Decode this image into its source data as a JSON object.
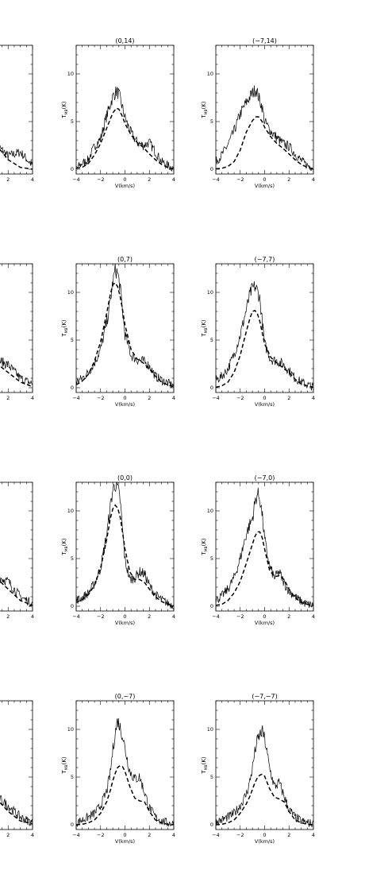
{
  "figure": {
    "xlabel": "V(km/s)",
    "ylabel_prefix": "T",
    "ylabel_sub": "MB",
    "ylabel_suffix": "(K)"
  },
  "chart_data": [
    {
      "type": "line",
      "title": "",
      "xlabel": "",
      "ylabel": "",
      "xlim": [
        -4,
        4
      ],
      "ylim": [
        -0.5,
        13
      ],
      "yticks": [],
      "xticks": [
        2,
        4
      ],
      "series": [
        {
          "style": "solid",
          "x": [
            1.0,
            2.0,
            3.0,
            4.0
          ],
          "y": [
            2.6,
            1.4,
            1.8,
            0.4
          ]
        },
        {
          "style": "dashed",
          "x": [
            1.0,
            2.0,
            3.0,
            4.0
          ],
          "y": [
            2.6,
            1.0,
            0.2,
            0.0
          ]
        }
      ]
    },
    {
      "type": "line",
      "title": "(0,14)",
      "xlabel": "V(km/s)",
      "ylabel": "TMB(K)",
      "xlim": [
        -4,
        4
      ],
      "ylim": [
        -0.5,
        13
      ],
      "yticks": [
        0,
        5,
        10
      ],
      "xticks": [
        -4,
        -2,
        0,
        2,
        4
      ],
      "series": [
        {
          "style": "solid",
          "x": [
            -4,
            -3.5,
            -3,
            -2.5,
            -2,
            -1.5,
            -1,
            -0.7,
            -0.5,
            -0.2,
            0,
            0.5,
            1,
            1.5,
            2,
            2.5,
            3,
            3.5,
            4
          ],
          "y": [
            0.1,
            0.6,
            1.0,
            2.4,
            3.2,
            5.6,
            7.6,
            8.2,
            7.9,
            6.4,
            5.4,
            3.8,
            2.8,
            2.5,
            2.8,
            1.8,
            0.8,
            0.4,
            0.1
          ]
        },
        {
          "style": "dashed",
          "x": [
            -4,
            -3.5,
            -3,
            -2.5,
            -2,
            -1.5,
            -1,
            -0.7,
            -0.5,
            -0.2,
            0,
            0.5,
            1,
            1.5,
            2,
            2.5,
            3,
            3.5,
            4
          ],
          "y": [
            0.1,
            0.2,
            0.6,
            1.5,
            2.7,
            4.3,
            5.9,
            6.4,
            6.3,
            5.5,
            4.8,
            3.6,
            2.8,
            2.3,
            1.6,
            1.0,
            0.5,
            0.2,
            0.05
          ]
        }
      ]
    },
    {
      "type": "line",
      "title": "(−7,14)",
      "xlabel": "V(km/s)",
      "ylabel": "TMB(K)",
      "xlim": [
        -4,
        4
      ],
      "ylim": [
        -0.5,
        13
      ],
      "yticks": [
        0,
        5,
        10
      ],
      "xticks": [
        -4,
        -2,
        0,
        2,
        4
      ],
      "series": [
        {
          "style": "solid",
          "x": [
            -4,
            -3.5,
            -3,
            -2.5,
            -2,
            -1.5,
            -1,
            -0.7,
            -0.5,
            -0.2,
            0,
            0.5,
            1,
            1.5,
            2,
            2.5,
            3,
            3.5,
            4
          ],
          "y": [
            0.8,
            1.5,
            2.6,
            4.0,
            5.8,
            7.0,
            8.0,
            8.4,
            7.6,
            6.5,
            5.0,
            4.0,
            3.3,
            2.7,
            2.4,
            1.6,
            0.9,
            0.4,
            0.2
          ]
        },
        {
          "style": "dashed",
          "x": [
            -4,
            -3.5,
            -3,
            -2.5,
            -2,
            -1.5,
            -1,
            -0.7,
            -0.5,
            -0.2,
            0,
            0.5,
            1,
            1.5,
            2,
            2.5,
            3,
            3.5,
            4
          ],
          "y": [
            0.05,
            0.1,
            0.3,
            0.8,
            2.0,
            3.9,
            5.1,
            5.5,
            5.5,
            5.0,
            4.4,
            3.4,
            2.7,
            2.2,
            1.6,
            1.0,
            0.5,
            0.2,
            0.05
          ]
        }
      ]
    },
    {
      "type": "line",
      "title": "",
      "xlabel": "",
      "ylabel": "",
      "xlim": [
        -4,
        4
      ],
      "ylim": [
        -0.5,
        13
      ],
      "yticks": [],
      "xticks": [
        2,
        4
      ],
      "series": [
        {
          "style": "solid",
          "x": [
            1.0,
            2.0,
            3.0,
            4.0
          ],
          "y": [
            3.0,
            2.4,
            1.0,
            0.4
          ]
        },
        {
          "style": "dashed",
          "x": [
            1.0,
            2.0,
            3.0,
            4.0
          ],
          "y": [
            2.6,
            1.6,
            0.6,
            0.1
          ]
        }
      ]
    },
    {
      "type": "line",
      "title": "(0,7)",
      "xlabel": "V(km/s)",
      "ylabel": "TMB(K)",
      "xlim": [
        -4,
        4
      ],
      "ylim": [
        -0.5,
        13
      ],
      "yticks": [
        0,
        5,
        10
      ],
      "xticks": [
        -4,
        -2,
        0,
        2,
        4
      ],
      "series": [
        {
          "style": "solid",
          "x": [
            -4,
            -3.5,
            -3,
            -2.5,
            -2,
            -1.5,
            -1.2,
            -1,
            -0.8,
            -0.6,
            -0.4,
            -0.2,
            0,
            0.5,
            1,
            1.5,
            2,
            2.5,
            3,
            3.5,
            4
          ],
          "y": [
            0.6,
            1.0,
            1.6,
            2.6,
            4.0,
            6.8,
            9.0,
            11.0,
            12.4,
            12.0,
            10.6,
            8.0,
            5.6,
            3.4,
            2.9,
            2.8,
            2.3,
            1.2,
            0.8,
            0.5,
            0.2
          ]
        },
        {
          "style": "dashed",
          "x": [
            -4,
            -3.5,
            -3,
            -2.5,
            -2,
            -1.5,
            -1.2,
            -1,
            -0.8,
            -0.6,
            -0.4,
            -0.2,
            0,
            0.5,
            1,
            1.5,
            2,
            2.5,
            3,
            3.5,
            4
          ],
          "y": [
            0.3,
            0.7,
            1.4,
            2.8,
            4.8,
            7.8,
            9.8,
            10.8,
            11.0,
            10.6,
            9.6,
            8.2,
            6.6,
            4.0,
            3.0,
            2.6,
            2.0,
            1.2,
            0.6,
            0.3,
            0.1
          ]
        }
      ]
    },
    {
      "type": "line",
      "title": "(−7,7)",
      "xlabel": "V(km/s)",
      "ylabel": "TMB(K)",
      "xlim": [
        -4,
        4
      ],
      "ylim": [
        -0.5,
        13
      ],
      "yticks": [
        0,
        5,
        10
      ],
      "xticks": [
        -4,
        -2,
        0,
        2,
        4
      ],
      "series": [
        {
          "style": "solid",
          "x": [
            -4,
            -3.5,
            -3,
            -2.5,
            -2,
            -1.5,
            -1.2,
            -1,
            -0.8,
            -0.6,
            -0.4,
            -0.2,
            0,
            0.5,
            1,
            1.5,
            2,
            2.5,
            3,
            3.5,
            4
          ],
          "y": [
            0.8,
            1.2,
            2.0,
            3.5,
            5.5,
            8.2,
            9.8,
            10.4,
            10.6,
            10.2,
            9.4,
            7.0,
            4.6,
            3.0,
            2.8,
            2.5,
            1.8,
            1.0,
            0.6,
            0.3,
            0.1
          ]
        },
        {
          "style": "dashed",
          "x": [
            -4,
            -3.5,
            -3,
            -2.5,
            -2,
            -1.5,
            -1.2,
            -1,
            -0.8,
            -0.6,
            -0.4,
            -0.2,
            0,
            0.5,
            1,
            1.5,
            2,
            2.5,
            3,
            3.5,
            4
          ],
          "y": [
            0.05,
            0.2,
            0.6,
            1.6,
            3.4,
            5.9,
            7.3,
            8.0,
            8.1,
            7.8,
            7.0,
            5.8,
            4.6,
            3.2,
            2.6,
            2.1,
            1.6,
            0.9,
            0.4,
            0.2,
            0.05
          ]
        }
      ]
    },
    {
      "type": "line",
      "title": "",
      "xlabel": "",
      "ylabel": "",
      "xlim": [
        -4,
        4
      ],
      "ylim": [
        -0.5,
        13
      ],
      "yticks": [],
      "xticks": [
        2,
        4
      ],
      "series": [
        {
          "style": "solid",
          "x": [
            1.0,
            2.0,
            3.0,
            4.0
          ],
          "y": [
            3.2,
            2.6,
            1.0,
            0.3
          ]
        },
        {
          "style": "dashed",
          "x": [
            1.0,
            2.0,
            3.0,
            4.0
          ],
          "y": [
            3.0,
            1.8,
            0.6,
            0.1
          ]
        }
      ]
    },
    {
      "type": "line",
      "title": "(0,0)",
      "xlabel": "V(km/s)",
      "ylabel": "TMB(K)",
      "xlim": [
        -4,
        4
      ],
      "ylim": [
        -0.5,
        13
      ],
      "yticks": [
        0,
        5,
        10
      ],
      "xticks": [
        -4,
        -2,
        0,
        2,
        4
      ],
      "series": [
        {
          "style": "solid",
          "x": [
            -4,
            -3.5,
            -3,
            -2.5,
            -2,
            -1.5,
            -1.2,
            -1,
            -0.8,
            -0.6,
            -0.4,
            -0.2,
            0,
            0.4,
            0.8,
            1.2,
            1.6,
            2,
            2.5,
            3,
            3.5,
            4
          ],
          "y": [
            0.6,
            0.9,
            1.4,
            2.4,
            4.0,
            7.5,
            10.4,
            12.2,
            12.8,
            12.4,
            11.2,
            8.0,
            4.8,
            2.8,
            3.0,
            3.6,
            3.4,
            2.2,
            1.2,
            0.7,
            0.3,
            0.1
          ]
        },
        {
          "style": "dashed",
          "x": [
            -4,
            -3.5,
            -3,
            -2.5,
            -2,
            -1.5,
            -1.2,
            -1,
            -0.8,
            -0.6,
            -0.4,
            -0.2,
            0,
            0.4,
            0.8,
            1.2,
            1.6,
            2,
            2.5,
            3,
            3.5,
            4
          ],
          "y": [
            0.4,
            0.7,
            1.2,
            2.2,
            4.0,
            7.0,
            9.2,
            10.2,
            10.6,
            10.3,
            9.4,
            7.8,
            6.0,
            3.6,
            2.8,
            2.8,
            2.5,
            1.8,
            1.0,
            0.5,
            0.2,
            0.05
          ]
        }
      ]
    },
    {
      "type": "line",
      "title": "(−7,0)",
      "xlabel": "V(km/s)",
      "ylabel": "TMB(K)",
      "xlim": [
        -4,
        4
      ],
      "ylim": [
        -0.5,
        13
      ],
      "yticks": [
        0,
        5,
        10
      ],
      "xticks": [
        -4,
        -2,
        0,
        2,
        4
      ],
      "series": [
        {
          "style": "solid",
          "x": [
            -4,
            -3.5,
            -3,
            -2.5,
            -2,
            -1.5,
            -1.2,
            -1,
            -0.8,
            -0.6,
            -0.4,
            -0.2,
            0,
            0.4,
            0.8,
            1.2,
            1.6,
            2,
            2.5,
            3,
            3.5,
            4
          ],
          "y": [
            0.6,
            1.1,
            1.8,
            3.0,
            5.0,
            7.6,
            8.6,
            9.2,
            10.8,
            11.8,
            11.4,
            9.6,
            7.0,
            4.2,
            3.0,
            3.6,
            2.4,
            1.6,
            1.0,
            0.5,
            0.2,
            0.1
          ]
        },
        {
          "style": "dashed",
          "x": [
            -4,
            -3.5,
            -3,
            -2.5,
            -2,
            -1.5,
            -1.2,
            -1,
            -0.8,
            -0.6,
            -0.4,
            -0.2,
            0,
            0.4,
            0.8,
            1.2,
            1.6,
            2,
            2.5,
            3,
            3.5,
            4
          ],
          "y": [
            0.1,
            0.2,
            0.6,
            1.4,
            2.6,
            4.5,
            5.7,
            6.5,
            7.3,
            7.8,
            7.8,
            7.2,
            6.0,
            3.8,
            3.1,
            3.2,
            2.8,
            1.8,
            0.9,
            0.4,
            0.2,
            0.05
          ]
        }
      ]
    },
    {
      "type": "line",
      "title": "",
      "xlabel": "",
      "ylabel": "",
      "xlim": [
        -4,
        4
      ],
      "ylim": [
        -0.5,
        13
      ],
      "yticks": [],
      "xticks": [
        2,
        4
      ],
      "series": [
        {
          "style": "solid",
          "x": [
            1.0,
            2.0,
            3.0,
            4.0
          ],
          "y": [
            3.0,
            2.0,
            0.8,
            0.2
          ]
        },
        {
          "style": "dashed",
          "x": [
            1.0,
            2.0,
            3.0,
            4.0
          ],
          "y": [
            2.8,
            1.4,
            0.4,
            0.1
          ]
        }
      ]
    },
    {
      "type": "line",
      "title": "(0,−7)",
      "xlabel": "V(km/s)",
      "ylabel": "TMB(K)",
      "xlim": [
        -4,
        4
      ],
      "ylim": [
        -0.5,
        13
      ],
      "yticks": [
        0,
        5,
        10
      ],
      "xticks": [
        -4,
        -2,
        0,
        2,
        4
      ],
      "series": [
        {
          "style": "solid",
          "x": [
            -4,
            -3.5,
            -3,
            -2.5,
            -2,
            -1.5,
            -1.2,
            -1,
            -0.8,
            -0.6,
            -0.4,
            -0.2,
            0,
            0.4,
            0.8,
            1.2,
            1.6,
            2,
            2.5,
            3,
            3.5,
            4
          ],
          "y": [
            0.2,
            0.5,
            0.8,
            1.2,
            2.0,
            3.5,
            5.4,
            7.8,
            9.6,
            11.0,
            10.2,
            9.4,
            8.0,
            5.6,
            4.8,
            5.0,
            3.4,
            1.8,
            0.8,
            0.4,
            0.2,
            0.1
          ]
        },
        {
          "style": "dashed",
          "x": [
            -4,
            -3.5,
            -3,
            -2.5,
            -2,
            -1.5,
            -1.2,
            -1,
            -0.8,
            -0.6,
            -0.4,
            -0.2,
            0,
            0.4,
            0.8,
            1.2,
            1.6,
            2,
            2.5,
            3,
            3.5,
            4
          ],
          "y": [
            0.0,
            0.05,
            0.2,
            0.5,
            1.2,
            2.4,
            3.6,
            4.6,
            5.4,
            6.0,
            6.2,
            6.1,
            5.6,
            4.0,
            2.8,
            2.5,
            2.4,
            1.4,
            0.5,
            0.2,
            0.05,
            0.0
          ]
        }
      ]
    },
    {
      "type": "line",
      "title": "(−7,−7)",
      "xlabel": "V(km/s)",
      "ylabel": "TMB(K)",
      "xlim": [
        -4,
        4
      ],
      "ylim": [
        -0.5,
        13
      ],
      "yticks": [
        0,
        5,
        10
      ],
      "xticks": [
        -4,
        -2,
        0,
        2,
        4
      ],
      "series": [
        {
          "style": "solid",
          "x": [
            -4,
            -3.5,
            -3,
            -2.5,
            -2,
            -1.5,
            -1.2,
            -1,
            -0.8,
            -0.6,
            -0.4,
            -0.2,
            0,
            0.4,
            0.8,
            1.2,
            1.6,
            2,
            2.5,
            3,
            3.5,
            4
          ],
          "y": [
            0.3,
            0.5,
            0.8,
            1.2,
            2.0,
            3.2,
            4.6,
            6.0,
            7.6,
            8.8,
            9.4,
            9.8,
            9.0,
            6.0,
            4.0,
            4.4,
            3.0,
            1.6,
            0.8,
            0.4,
            0.2,
            0.1
          ]
        },
        {
          "style": "dashed",
          "x": [
            -4,
            -3.5,
            -3,
            -2.5,
            -2,
            -1.5,
            -1.2,
            -1,
            -0.8,
            -0.6,
            -0.4,
            -0.2,
            0,
            0.4,
            0.8,
            1.2,
            1.6,
            2,
            2.5,
            3,
            3.5,
            4
          ],
          "y": [
            0.0,
            0.05,
            0.2,
            0.5,
            1.2,
            2.2,
            3.0,
            3.7,
            4.4,
            4.9,
            5.2,
            5.3,
            5.1,
            3.8,
            2.9,
            2.7,
            2.4,
            1.4,
            0.5,
            0.2,
            0.05,
            0.0
          ]
        }
      ]
    }
  ]
}
